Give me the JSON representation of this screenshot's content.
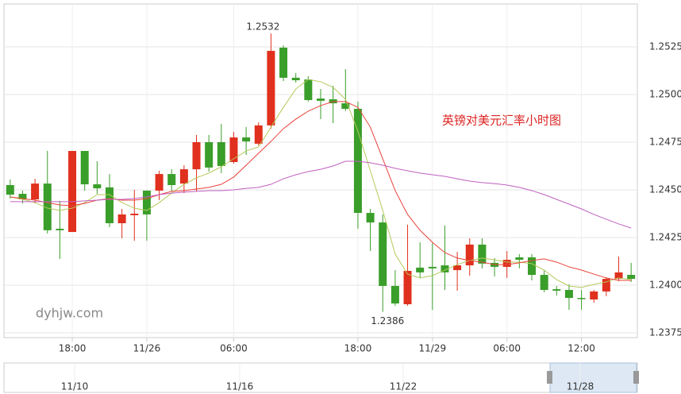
{
  "chart_data": {
    "type": "candlestick",
    "title": "英镑对美元汇率小时图",
    "watermark": "dyhjw.com",
    "high_label": "1.2532",
    "low_label": "1.2386",
    "categories": [
      null,
      null,
      null,
      null,
      null,
      "18:00",
      null,
      null,
      null,
      null,
      null,
      "11/26",
      null,
      null,
      null,
      null,
      null,
      null,
      "06:00",
      null,
      null,
      null,
      null,
      null,
      null,
      null,
      null,
      null,
      "18:00",
      null,
      null,
      null,
      null,
      null,
      "11/29",
      null,
      null,
      null,
      null,
      null,
      "06:00",
      null,
      null,
      null,
      null,
      null,
      "12:00",
      null,
      null,
      null,
      null
    ],
    "open": [
      1.24525,
      1.24479,
      1.2445,
      1.24533,
      1.24296,
      1.24279,
      1.24704,
      1.24529,
      1.24513,
      1.24325,
      1.24367,
      1.24496,
      1.24496,
      1.24583,
      1.24533,
      1.24608,
      1.2475,
      1.2475,
      1.24646,
      1.24775,
      1.24742,
      1.24838,
      1.25246,
      1.25088,
      1.25079,
      1.24979,
      1.24975,
      1.24954,
      1.24925,
      1.24379,
      1.24329,
      1.23996,
      1.239,
      1.24092,
      1.24096,
      1.24104,
      1.24079,
      1.24104,
      1.24213,
      1.24117,
      1.24096,
      1.24146,
      1.24146,
      1.24054,
      1.23979,
      1.23975,
      1.23933,
      1.23925,
      1.23967,
      1.24033,
      1.24054
    ],
    "high": [
      1.24554,
      1.24496,
      1.24558,
      1.24704,
      1.24442,
      1.24704,
      1.24704,
      1.2465,
      1.24583,
      1.244,
      1.245,
      1.24496,
      1.246,
      1.24608,
      1.24629,
      1.24788,
      1.24788,
      1.24846,
      1.24804,
      1.24829,
      1.24854,
      1.2532,
      1.25258,
      1.25113,
      1.25096,
      1.25029,
      1.25046,
      1.25133,
      1.24963,
      1.244,
      1.24371,
      1.24079,
      1.24317,
      1.24225,
      1.24221,
      1.24313,
      1.24175,
      1.24246,
      1.24246,
      1.24142,
      1.24179,
      1.24163,
      1.24163,
      1.24079,
      1.23996,
      1.24004,
      1.23975,
      1.23975,
      1.24042,
      1.2415,
      1.24117
    ],
    "low": [
      1.24454,
      1.24429,
      1.24429,
      1.24271,
      1.24138,
      1.24279,
      1.24496,
      1.24479,
      1.24304,
      1.24246,
      1.24233,
      1.24233,
      1.24446,
      1.24492,
      1.24483,
      1.24492,
      1.24596,
      1.24588,
      1.24638,
      1.24683,
      1.24733,
      1.24821,
      1.25071,
      1.25063,
      1.24963,
      1.24871,
      1.2485,
      1.24913,
      1.24296,
      1.24179,
      1.2386,
      1.23892,
      1.23892,
      1.24038,
      1.2387,
      1.23975,
      1.23971,
      1.2405,
      1.24088,
      1.24046,
      1.24038,
      1.24088,
      1.24025,
      1.23963,
      1.23946,
      1.23871,
      1.23871,
      1.23908,
      1.23942,
      1.24021,
      1.24017
    ],
    "close": [
      1.24475,
      1.2445,
      1.24533,
      1.24288,
      1.24288,
      1.24704,
      1.24529,
      1.24508,
      1.24325,
      1.24371,
      1.24375,
      1.24371,
      1.24583,
      1.24525,
      1.24608,
      1.2475,
      1.24617,
      1.24625,
      1.24775,
      1.24754,
      1.24838,
      1.25229,
      1.25088,
      1.25075,
      1.24971,
      1.24967,
      1.24954,
      1.24925,
      1.24379,
      1.24329,
      1.23996,
      1.23904,
      1.24075,
      1.24067,
      1.24088,
      1.24067,
      1.24104,
      1.24213,
      1.24113,
      1.24096,
      1.24133,
      1.24133,
      1.24054,
      1.23975,
      1.23971,
      1.23933,
      1.23929,
      1.23967,
      1.24033,
      1.24067,
      1.24033
    ],
    "up_color": "#e0301e",
    "down_color": "#3a9e2a",
    "lines": [
      {
        "color": "#b5c95a",
        "values": [
          1.24463,
          1.2445,
          1.24433,
          1.24404,
          1.24392,
          1.24404,
          1.24433,
          1.24475,
          1.24475,
          1.24433,
          1.24404,
          1.24392,
          1.24433,
          1.24483,
          1.24529,
          1.24563,
          1.24588,
          1.24621,
          1.24663,
          1.24704,
          1.24725,
          1.24829,
          1.24933,
          1.25029,
          1.25079,
          1.25067,
          1.25038,
          1.24975,
          1.24808,
          1.246,
          1.24392,
          1.24163,
          1.24058,
          1.24038,
          1.2405,
          1.24079,
          1.24108,
          1.24129,
          1.24142,
          1.24133,
          1.24121,
          1.24121,
          1.24113,
          1.24079,
          1.24029,
          1.23996,
          1.23988,
          1.24004,
          1.24017,
          1.24038,
          1.24029
        ]
      },
      {
        "color": "#e8423a",
        "values": [
          1.24463,
          1.24454,
          1.24446,
          1.24433,
          1.24421,
          1.24417,
          1.24429,
          1.24446,
          1.24454,
          1.24446,
          1.24446,
          1.24454,
          1.24475,
          1.24492,
          1.24496,
          1.24504,
          1.24513,
          1.24529,
          1.24567,
          1.24629,
          1.24692,
          1.24754,
          1.24821,
          1.24871,
          1.24913,
          1.24942,
          1.24963,
          1.24963,
          1.24933,
          1.24829,
          1.24663,
          1.24496,
          1.24371,
          1.24288,
          1.24225,
          1.24171,
          1.24142,
          1.24129,
          1.24121,
          1.24108,
          1.24108,
          1.24117,
          1.24129,
          1.24138,
          1.24121,
          1.24096,
          1.24079,
          1.24058,
          1.24038,
          1.24025,
          1.24025
        ]
      },
      {
        "color": "#c060c0",
        "values": [
          1.24438,
          1.24438,
          1.24438,
          1.24438,
          1.24438,
          1.24438,
          1.24442,
          1.24446,
          1.2445,
          1.2445,
          1.24454,
          1.24463,
          1.24475,
          1.24483,
          1.24488,
          1.24492,
          1.24496,
          1.24496,
          1.245,
          1.24508,
          1.24513,
          1.24529,
          1.24558,
          1.24579,
          1.24596,
          1.24608,
          1.24625,
          1.2465,
          1.2465,
          1.24642,
          1.24629,
          1.24613,
          1.246,
          1.24588,
          1.24579,
          1.24571,
          1.24558,
          1.24546,
          1.24538,
          1.24533,
          1.24525,
          1.24513,
          1.24496,
          1.24475,
          1.2445,
          1.24425,
          1.244,
          1.24371,
          1.24346,
          1.24321,
          1.243
        ]
      }
    ],
    "ylim": [
      1.23725,
      1.25475
    ],
    "yticks": [
      1.2375,
      {
        "value": 1.24,
        "label": "1.2400"
      },
      1.2425,
      {
        "value": 1.245,
        "label": "1.2450"
      },
      1.2475,
      {
        "value": 1.25,
        "label": "1.2500"
      },
      1.2525
    ],
    "grid": true,
    "navigator": {
      "labels": [
        "11/10",
        "11/16",
        "11/22",
        "11/28"
      ]
    }
  }
}
